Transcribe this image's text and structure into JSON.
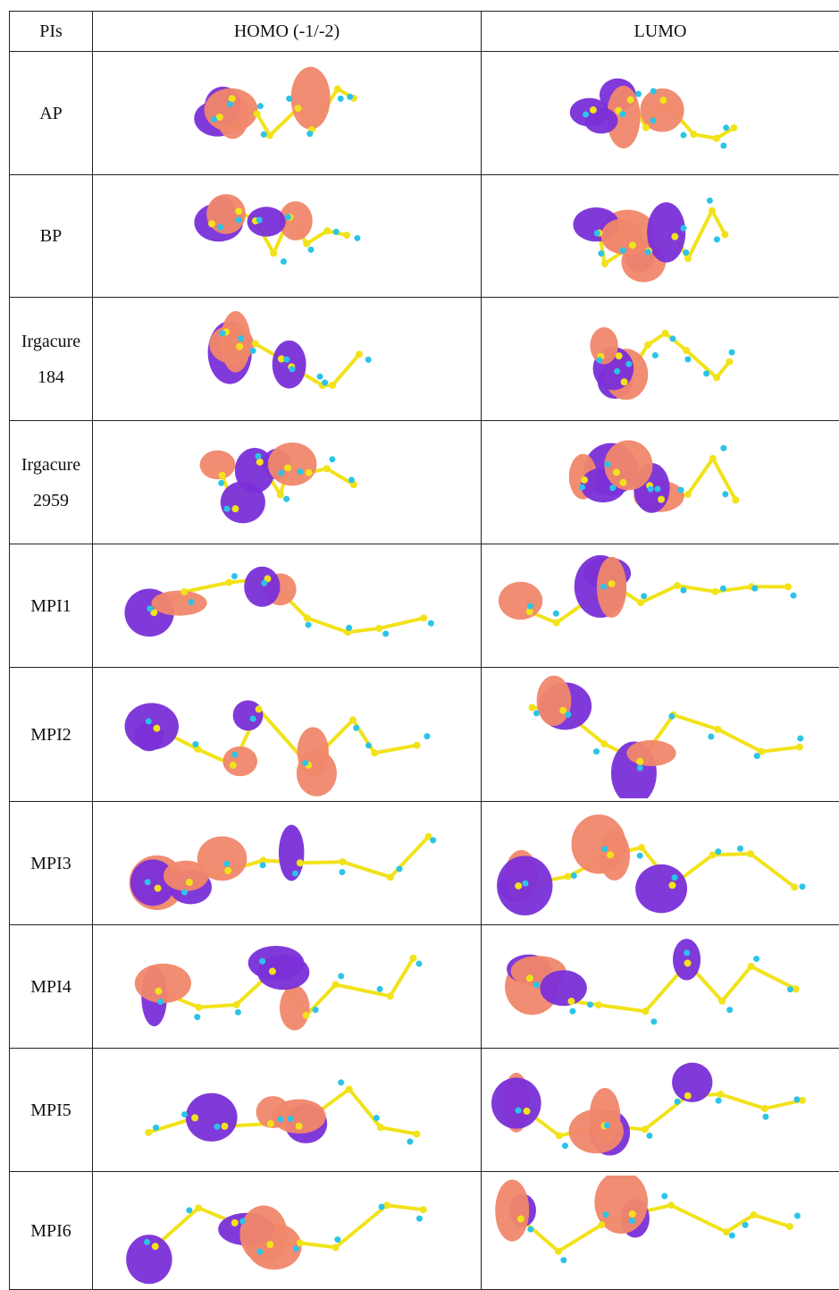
{
  "table": {
    "header": [
      "PIs",
      "HOMO (-1/-2)",
      "LUMO"
    ],
    "rows": [
      "AP",
      "BP",
      "Irgacure 184",
      "Irgacure 2959",
      "MPI1",
      "MPI2",
      "MPI3",
      "MPI4",
      "MPI5",
      "MPI6"
    ]
  }
}
